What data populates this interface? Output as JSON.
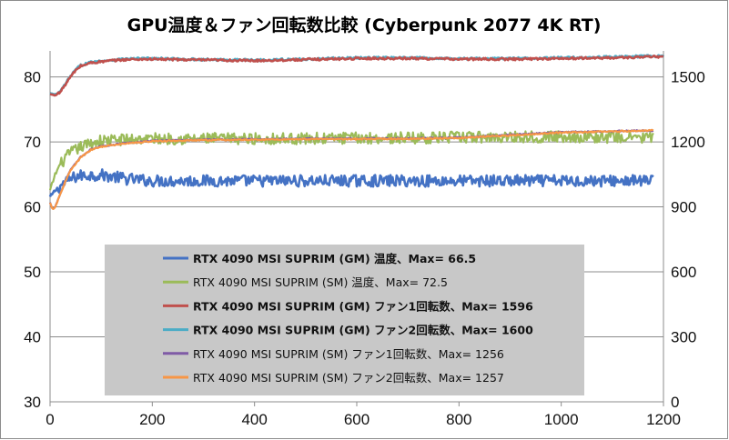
{
  "chart_data": {
    "type": "line",
    "title": "GPU温度＆ファン回転数比較 (Cyberpunk 2077 4K RT)",
    "x_ticks": [
      "0",
      "200",
      "400",
      "600",
      "800",
      "1000",
      "1200"
    ],
    "y_left_ticks": [
      "30",
      "40",
      "50",
      "60",
      "70",
      "80"
    ],
    "y_right_ticks": [
      "0",
      "300",
      "600",
      "900",
      "1200",
      "1500"
    ],
    "xlim": [
      0,
      1200
    ],
    "ylim_left": [
      30,
      84
    ],
    "ylim_right": [
      0,
      1620
    ],
    "grid": "horizontal",
    "legend_position": "lower-center",
    "series": [
      {
        "name": "RTX 4090 MSI SUPRIM (GM) 温度、Max= 66.5",
        "axis": "left",
        "color": "#4472c4",
        "bold": true,
        "x": [
          0,
          10,
          20,
          30,
          40,
          50,
          60,
          80,
          100,
          120,
          150,
          200,
          300,
          400,
          500,
          600,
          700,
          800,
          900,
          1000,
          1100,
          1180
        ],
        "y": [
          61.5,
          62.5,
          63.2,
          63.8,
          64.3,
          64.6,
          64.8,
          64.9,
          64.9,
          64.7,
          64.3,
          64.0,
          64.0,
          64.0,
          64.0,
          64.0,
          64.0,
          64.0,
          64.0,
          64.0,
          64.0,
          64.0
        ],
        "noise": 0.9
      },
      {
        "name": "RTX 4090 MSI SUPRIM (SM) 温度、Max= 72.5",
        "axis": "left",
        "color": "#9bbb59",
        "bold": false,
        "x": [
          0,
          10,
          20,
          30,
          40,
          60,
          80,
          100,
          150,
          200,
          300,
          400,
          500,
          600,
          700,
          800,
          900,
          1000,
          1100,
          1180
        ],
        "y": [
          62.5,
          65.0,
          66.5,
          67.5,
          68.3,
          69.2,
          69.8,
          70.2,
          70.4,
          70.5,
          70.5,
          70.5,
          70.5,
          70.6,
          70.6,
          70.7,
          70.8,
          70.8,
          70.7,
          70.7
        ],
        "noise": 0.9
      },
      {
        "name": "RTX 4090 MSI SUPRIM (GM) ファン1回転数、Max= 1596",
        "axis": "right",
        "color": "#c0504d",
        "bold": true,
        "x": [
          0,
          10,
          20,
          30,
          40,
          50,
          60,
          80,
          100,
          120,
          150,
          180,
          200,
          300,
          400,
          500,
          600,
          700,
          800,
          900,
          1000,
          1100,
          1200
        ],
        "y": [
          1420,
          1415,
          1430,
          1465,
          1500,
          1530,
          1550,
          1565,
          1570,
          1575,
          1580,
          1582,
          1582,
          1578,
          1575,
          1580,
          1585,
          1586,
          1582,
          1582,
          1585,
          1588,
          1594
        ],
        "noise": 5
      },
      {
        "name": "RTX 4090 MSI SUPRIM (GM) ファン2回転数、Max= 1600",
        "axis": "right",
        "color": "#4bacc6",
        "bold": true,
        "x": [
          0,
          10,
          20,
          30,
          40,
          50,
          60,
          80,
          100,
          120,
          150,
          180,
          200,
          300,
          400,
          500,
          600,
          700,
          800,
          900,
          1000,
          1100,
          1200
        ],
        "y": [
          1425,
          1418,
          1432,
          1468,
          1503,
          1533,
          1553,
          1568,
          1573,
          1578,
          1583,
          1585,
          1585,
          1580,
          1578,
          1582,
          1588,
          1588,
          1585,
          1585,
          1588,
          1592,
          1597
        ],
        "noise": 5
      },
      {
        "name": "RTX 4090 MSI SUPRIM (SM) ファン1回転数、Max= 1256",
        "axis": "right",
        "color": "#7f5ba6",
        "bold": false,
        "x": [
          0,
          5,
          10,
          20,
          30,
          40,
          60,
          80,
          100,
          150,
          200,
          300,
          400,
          500,
          600,
          700,
          800,
          900,
          1000,
          1100,
          1180
        ],
        "y": [
          920,
          890,
          900,
          960,
          1020,
          1070,
          1130,
          1165,
          1180,
          1195,
          1205,
          1210,
          1212,
          1215,
          1215,
          1216,
          1220,
          1232,
          1245,
          1250,
          1252
        ],
        "noise": 3
      },
      {
        "name": "RTX 4090 MSI SUPRIM (SM) ファン2回転数、Max= 1257",
        "axis": "right",
        "color": "#f79646",
        "bold": false,
        "x": [
          0,
          5,
          10,
          20,
          30,
          40,
          60,
          80,
          100,
          150,
          200,
          300,
          400,
          500,
          600,
          700,
          800,
          900,
          1000,
          1100,
          1180
        ],
        "y": [
          918,
          888,
          898,
          958,
          1018,
          1068,
          1128,
          1163,
          1178,
          1193,
          1203,
          1208,
          1210,
          1213,
          1213,
          1214,
          1218,
          1230,
          1243,
          1248,
          1253
        ],
        "noise": 3
      }
    ]
  }
}
